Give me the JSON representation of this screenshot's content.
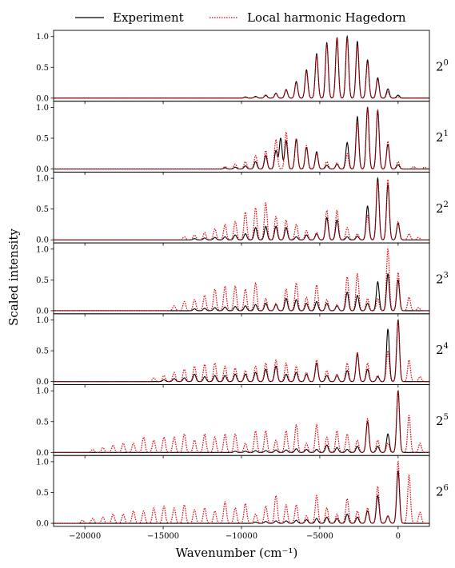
{
  "chart_data": {
    "type": "line",
    "title": "",
    "xlabel": "Wavenumber (cm⁻¹)",
    "ylabel": "Scaled intensity",
    "xlim": [
      -22000,
      2000
    ],
    "ylim": [
      -0.05,
      1.1
    ],
    "x_ticks": [
      {
        "value": -20000,
        "label": "−20000"
      },
      {
        "value": -15000,
        "label": "−15000"
      },
      {
        "value": -10000,
        "label": "−10000"
      },
      {
        "value": -5000,
        "label": "−5000"
      },
      {
        "value": 0,
        "label": "0"
      }
    ],
    "y_ticks": [
      {
        "value": 0.0,
        "label": "0.0"
      },
      {
        "value": 0.5,
        "label": "0.5"
      },
      {
        "value": 1.0,
        "label": "1.0"
      }
    ],
    "legend": {
      "placement": "top",
      "entries": [
        {
          "name": "Experiment",
          "color": "#000000",
          "style": "solid"
        },
        {
          "name": "Local harmonic Hagedorn",
          "color": "#e8000b",
          "style": "dotted"
        }
      ]
    },
    "peak_width_cm": 90,
    "panels": [
      {
        "label_base": "2",
        "label_sup": "0",
        "series": [
          {
            "name": "Experiment",
            "x_peaks": [
              0,
              -650,
              -1300,
              -1950,
              -2600,
              -3250,
              -3900,
              -4550,
              -5200,
              -5850,
              -6500,
              -7150,
              -7800,
              -8450,
              -9100,
              -9750
            ],
            "y_peaks": [
              0.05,
              0.15,
              0.33,
              0.62,
              0.92,
              1.0,
              0.98,
              0.9,
              0.72,
              0.46,
              0.27,
              0.14,
              0.08,
              0.05,
              0.03,
              0.02
            ]
          },
          {
            "name": "Local harmonic Hagedorn",
            "x_peaks": [
              0,
              -650,
              -1300,
              -1950,
              -2600,
              -3250,
              -3900,
              -4550,
              -5200,
              -5850,
              -6500,
              -7150,
              -7800,
              -8450,
              -9100,
              -9750
            ],
            "y_peaks": [
              0.02,
              0.1,
              0.3,
              0.58,
              0.85,
              0.98,
              0.97,
              0.88,
              0.7,
              0.43,
              0.25,
              0.13,
              0.07,
              0.04,
              0.02,
              0.01
            ]
          }
        ]
      },
      {
        "label_base": "2",
        "label_sup": "1",
        "series": [
          {
            "name": "Experiment",
            "x_peaks": [
              0,
              -650,
              -1300,
              -1950,
              -2600,
              -3250,
              -3900,
              -4550,
              -5200,
              -5850,
              -6500,
              -7150,
              -7500,
              -7800,
              -8450,
              -9100,
              -9750,
              -10400,
              -11050
            ],
            "y_peaks": [
              0.07,
              0.4,
              0.95,
              1.0,
              0.85,
              0.43,
              0.08,
              0.06,
              0.28,
              0.35,
              0.48,
              0.46,
              0.5,
              0.3,
              0.22,
              0.12,
              0.05,
              0.03,
              0.02
            ]
          },
          {
            "name": "Local harmonic Hagedorn",
            "x_peaks": [
              0,
              -650,
              -1300,
              -1950,
              -2600,
              -3250,
              -3900,
              -4550,
              -5200,
              -5850,
              -6500,
              -7150,
              -7800,
              -8450,
              -9100,
              -9750,
              -10400,
              -11050,
              1000,
              1700
            ],
            "y_peaks": [
              0.12,
              0.45,
              0.95,
              0.98,
              0.75,
              0.25,
              0.1,
              0.12,
              0.25,
              0.38,
              0.5,
              0.6,
              0.48,
              0.3,
              0.22,
              0.12,
              0.08,
              0.04,
              0.04,
              0.03
            ]
          }
        ]
      },
      {
        "label_base": "2",
        "label_sup": "2",
        "series": [
          {
            "name": "Experiment",
            "x_peaks": [
              0,
              -650,
              -1300,
              -1950,
              -2600,
              -3250,
              -3900,
              -4550,
              -5200,
              -5850,
              -6500,
              -7150,
              -7800,
              -8450,
              -9100,
              -9750,
              -10400,
              -11050,
              -11700,
              -12350,
              -13000
            ],
            "y_peaks": [
              0.27,
              0.9,
              1.0,
              0.55,
              0.06,
              0.05,
              0.32,
              0.36,
              0.1,
              0.08,
              0.05,
              0.2,
              0.22,
              0.22,
              0.2,
              0.1,
              0.08,
              0.05,
              0.04,
              0.03,
              0.02
            ]
          },
          {
            "name": "Local harmonic Hagedorn",
            "x_peaks": [
              0,
              -650,
              -1300,
              -1950,
              -2600,
              -3250,
              -3900,
              -4550,
              -5200,
              -5850,
              -6500,
              -7150,
              -7800,
              -8450,
              -9100,
              -9750,
              -10400,
              -11050,
              -11700,
              -12350,
              -13000,
              -13650,
              700,
              1300
            ],
            "y_peaks": [
              0.3,
              0.98,
              0.95,
              0.4,
              0.1,
              0.2,
              0.48,
              0.48,
              0.12,
              0.15,
              0.25,
              0.32,
              0.38,
              0.6,
              0.52,
              0.45,
              0.3,
              0.25,
              0.18,
              0.12,
              0.08,
              0.05,
              0.1,
              0.04
            ]
          }
        ]
      },
      {
        "label_base": "2",
        "label_sup": "3",
        "series": [
          {
            "name": "Experiment",
            "x_peaks": [
              0,
              -650,
              -1300,
              -1950,
              -2600,
              -3250,
              -3900,
              -4550,
              -5200,
              -5850,
              -6500,
              -7150,
              -7800,
              -8450,
              -9100,
              -9750,
              -10400,
              -11050,
              -11700,
              -12350,
              -13000
            ],
            "y_peaks": [
              0.5,
              0.6,
              0.47,
              0.12,
              0.25,
              0.3,
              0.08,
              0.12,
              0.15,
              0.12,
              0.18,
              0.2,
              0.1,
              0.12,
              0.1,
              0.08,
              0.07,
              0.06,
              0.05,
              0.04,
              0.03
            ]
          },
          {
            "name": "Local harmonic Hagedorn",
            "x_peaks": [
              0,
              -650,
              -1300,
              -1950,
              -2600,
              -3250,
              -3900,
              -4550,
              -5200,
              -5850,
              -6500,
              -7150,
              -7800,
              -8450,
              -9100,
              -9750,
              -10400,
              -11050,
              -11700,
              -12350,
              -13000,
              -13650,
              -14300,
              700,
              1300
            ],
            "y_peaks": [
              0.62,
              1.0,
              0.2,
              0.2,
              0.6,
              0.55,
              0.1,
              0.18,
              0.42,
              0.22,
              0.45,
              0.35,
              0.12,
              0.2,
              0.45,
              0.35,
              0.4,
              0.4,
              0.35,
              0.25,
              0.18,
              0.15,
              0.08,
              0.22,
              0.05
            ]
          }
        ]
      },
      {
        "label_base": "2",
        "label_sup": "4",
        "series": [
          {
            "name": "Experiment",
            "x_peaks": [
              0,
              -650,
              -1300,
              -1950,
              -2600,
              -3250,
              -3900,
              -4550,
              -5200,
              -5850,
              -6500,
              -7150,
              -7800,
              -8450,
              -9100,
              -9750,
              -10400,
              -11050,
              -11700,
              -12350,
              -13000,
              -13650,
              -14300,
              -14950
            ],
            "y_peaks": [
              1.0,
              0.85,
              0.08,
              0.2,
              0.45,
              0.18,
              0.1,
              0.1,
              0.3,
              0.12,
              0.15,
              0.12,
              0.25,
              0.2,
              0.15,
              0.12,
              0.12,
              0.1,
              0.1,
              0.08,
              0.12,
              0.06,
              0.05,
              0.03
            ]
          },
          {
            "name": "Local harmonic Hagedorn",
            "x_peaks": [
              0,
              -650,
              -1300,
              -1950,
              -2600,
              -3250,
              -3900,
              -4550,
              -5200,
              -5850,
              -6500,
              -7150,
              -7800,
              -8450,
              -9100,
              -9750,
              -10400,
              -11050,
              -11700,
              -12350,
              -13000,
              -13650,
              -14300,
              -14950,
              -15600,
              700,
              1400
            ],
            "y_peaks": [
              0.98,
              0.5,
              0.1,
              0.3,
              0.48,
              0.3,
              0.12,
              0.18,
              0.35,
              0.15,
              0.25,
              0.3,
              0.35,
              0.3,
              0.25,
              0.18,
              0.22,
              0.25,
              0.3,
              0.28,
              0.25,
              0.2,
              0.15,
              0.1,
              0.06,
              0.35,
              0.08
            ]
          }
        ]
      },
      {
        "label_base": "2",
        "label_sup": "5",
        "series": [
          {
            "name": "Experiment",
            "x_peaks": [
              0,
              -650,
              -1300,
              -1950,
              -2600,
              -3250,
              -3900,
              -4550,
              -5200,
              -5850,
              -6500,
              -7150,
              -7800,
              -8450,
              -9100,
              -9750,
              -10400
            ],
            "y_peaks": [
              1.0,
              0.3,
              0.1,
              0.5,
              0.1,
              0.05,
              0.08,
              0.12,
              0.05,
              0.05,
              0.06,
              0.04,
              0.04,
              0.03,
              0.03,
              0.02,
              0.02
            ]
          },
          {
            "name": "Local harmonic Hagedorn",
            "x_peaks": [
              0,
              -650,
              -1300,
              -1950,
              -2600,
              -3250,
              -3900,
              -4550,
              -5200,
              -5850,
              -6500,
              -7150,
              -7800,
              -8450,
              -9100,
              -9750,
              -10400,
              -11050,
              -11700,
              -12350,
              -13000,
              -13650,
              -14300,
              -14950,
              -15600,
              -16250,
              -16900,
              -17550,
              -18200,
              -18850,
              -19500,
              700,
              1400
            ],
            "y_peaks": [
              1.0,
              0.15,
              0.2,
              0.55,
              0.2,
              0.3,
              0.35,
              0.25,
              0.45,
              0.15,
              0.45,
              0.35,
              0.2,
              0.35,
              0.35,
              0.15,
              0.3,
              0.3,
              0.25,
              0.3,
              0.2,
              0.3,
              0.25,
              0.25,
              0.2,
              0.25,
              0.15,
              0.15,
              0.12,
              0.08,
              0.05,
              0.6,
              0.15
            ]
          }
        ]
      },
      {
        "label_base": "2",
        "label_sup": "6",
        "series": [
          {
            "name": "Experiment",
            "x_peaks": [
              0,
              -650,
              -1300,
              -1950,
              -2600,
              -3250,
              -3900,
              -4550,
              -5200,
              -5850,
              -6500,
              -7150,
              -7800,
              -8450,
              -9100
            ],
            "y_peaks": [
              0.85,
              0.12,
              0.45,
              0.2,
              0.1,
              0.15,
              0.08,
              0.1,
              0.08,
              0.06,
              0.05,
              0.04,
              0.04,
              0.03,
              0.02
            ]
          },
          {
            "name": "Local harmonic Hagedorn",
            "x_peaks": [
              0,
              -650,
              -1300,
              -1950,
              -2600,
              -3250,
              -3900,
              -4550,
              -5200,
              -5850,
              -6500,
              -7150,
              -7800,
              -8450,
              -9100,
              -9750,
              -10400,
              -11050,
              -11700,
              -12350,
              -13000,
              -13650,
              -14300,
              -14950,
              -15600,
              -16250,
              -16900,
              -17550,
              -18200,
              -18850,
              -19500,
              -20150,
              700,
              1400
            ],
            "y_peaks": [
              1.0,
              0.12,
              0.6,
              0.25,
              0.2,
              0.4,
              0.15,
              0.25,
              0.45,
              0.12,
              0.3,
              0.3,
              0.45,
              0.28,
              0.15,
              0.32,
              0.25,
              0.35,
              0.2,
              0.25,
              0.22,
              0.3,
              0.25,
              0.28,
              0.25,
              0.2,
              0.2,
              0.15,
              0.15,
              0.1,
              0.08,
              0.05,
              0.78,
              0.18
            ]
          }
        ]
      }
    ]
  }
}
